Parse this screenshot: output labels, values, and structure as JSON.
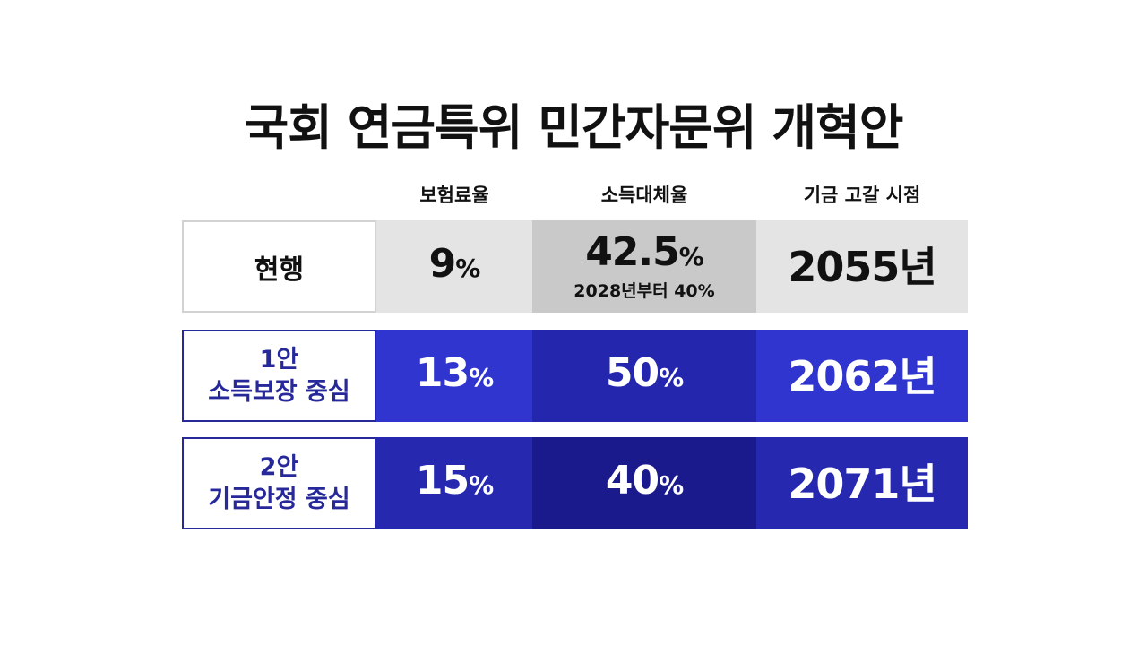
{
  "title": "국회 연금특위 민간자문위 개혁안",
  "columns": {
    "premium_rate": "보험료율",
    "replacement_rate": "소득대체율",
    "depletion_year": "기금 고갈 시점"
  },
  "rows": [
    {
      "label_line1": "현행",
      "premium_rate": "9",
      "premium_rate_unit": "%",
      "replacement_rate": "42.5",
      "replacement_rate_unit": "%",
      "replacement_note": "2028년부터 40%",
      "depletion_year": "2055년"
    },
    {
      "label_line1": "1안",
      "label_line2": "소득보장 중심",
      "premium_rate": "13",
      "premium_rate_unit": "%",
      "replacement_rate": "50",
      "replacement_rate_unit": "%",
      "depletion_year": "2062년"
    },
    {
      "label_line1": "2안",
      "label_line2": "기금안정 중심",
      "premium_rate": "15",
      "premium_rate_unit": "%",
      "replacement_rate": "40",
      "replacement_rate_unit": "%",
      "depletion_year": "2071년"
    }
  ],
  "colors": {
    "plan_label": "#27289a",
    "plan1_bright": "#3135cf",
    "plan1_mid": "#2426ae",
    "plan2_bright": "#2628b0",
    "plan2_dark": "#1b1a8c",
    "current_light": "#e4e4e4",
    "current_mid": "#c9c9c9"
  }
}
